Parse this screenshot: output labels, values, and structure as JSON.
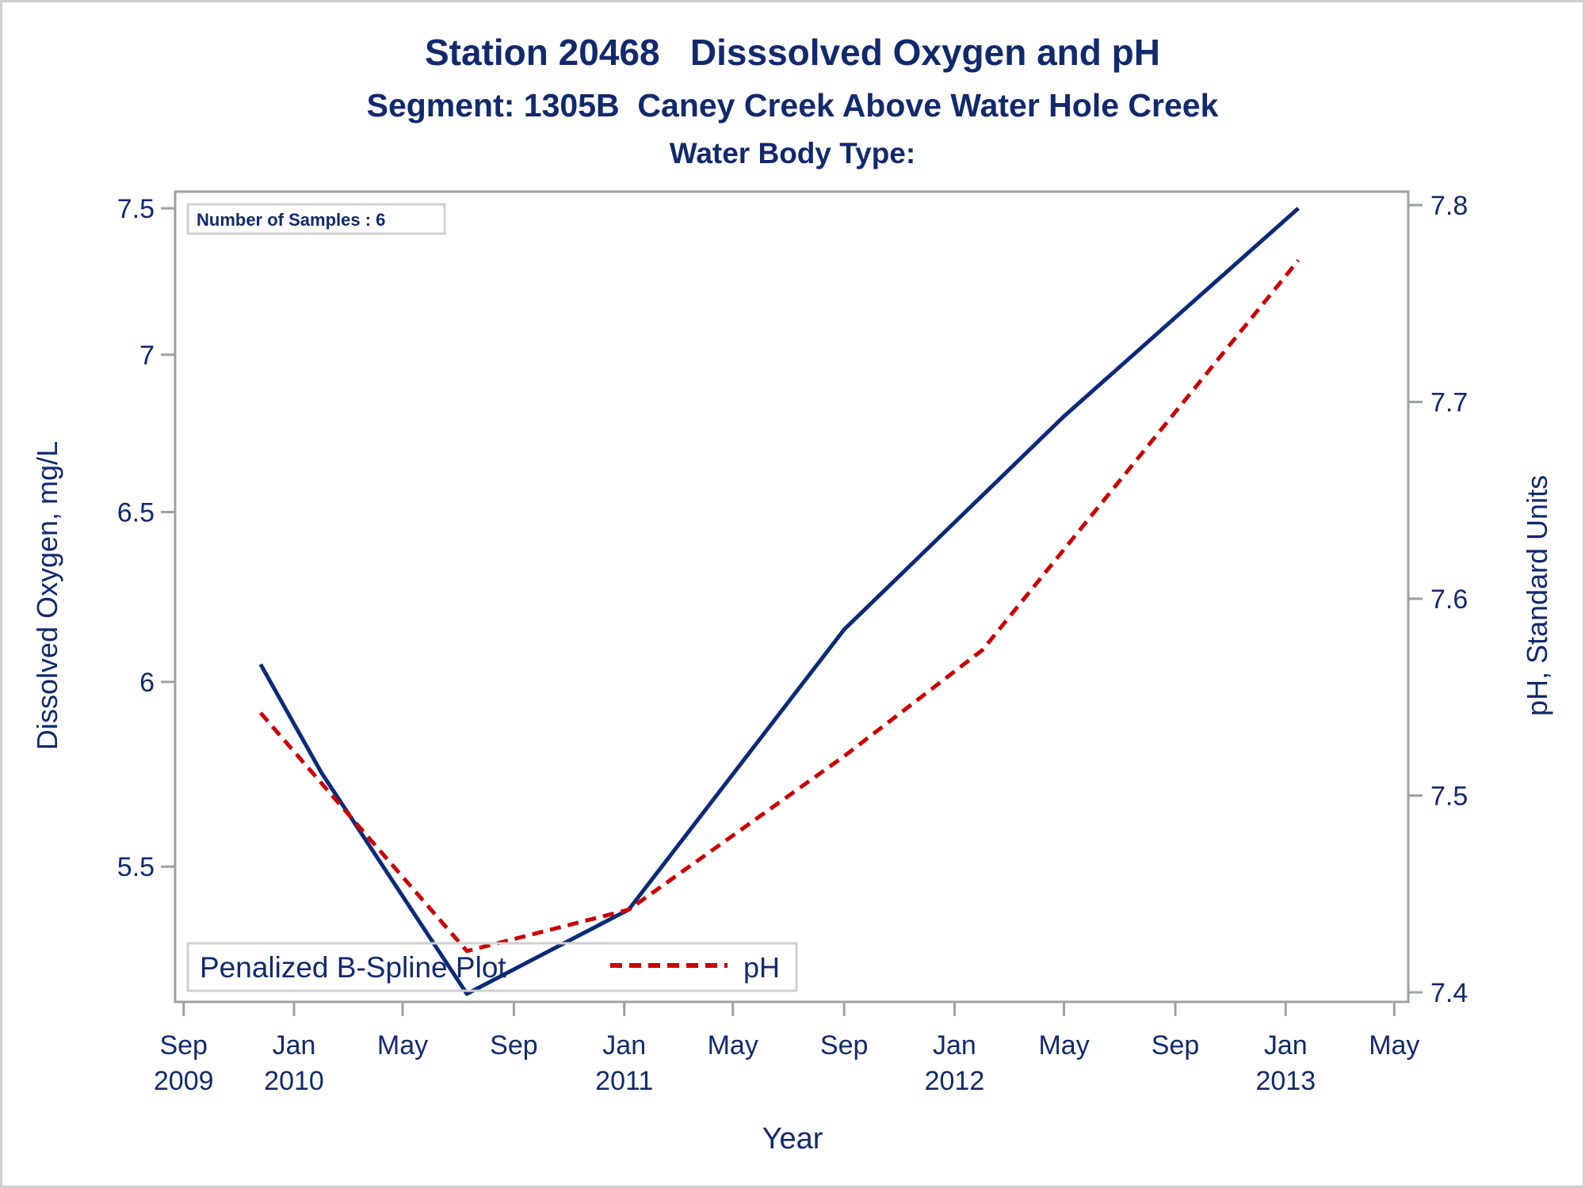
{
  "chart_data": {
    "type": "line",
    "title": "Station 20468   Disssolved Oxygen and pH",
    "subtitle": "Segment: 1305B  Caney Creek Above Water Hole Creek",
    "subtitle2": "Water Body Type:",
    "xlabel": "Year",
    "ylabel_left": "Dissolved Oxygen, mg/L",
    "ylabel_right": "pH, Standard Units",
    "annotation": "Number of Samples : 6",
    "legend": {
      "placement": "bottom-left-inside",
      "title": "Penalized B-Spline Plot",
      "entries": [
        {
          "label": "pH",
          "style": "dashed",
          "color": "#cc0000"
        }
      ]
    },
    "x_axis": {
      "type": "time",
      "range": [
        "2009-09-01",
        "2013-05-01"
      ],
      "ticks": [
        {
          "date": "2009-09-01",
          "label": "Sep",
          "year": "2009"
        },
        {
          "date": "2010-01-01",
          "label": "Jan",
          "year": "2010"
        },
        {
          "date": "2010-05-01",
          "label": "May",
          "year": ""
        },
        {
          "date": "2010-09-01",
          "label": "Sep",
          "year": ""
        },
        {
          "date": "2011-01-01",
          "label": "Jan",
          "year": "2011"
        },
        {
          "date": "2011-05-01",
          "label": "May",
          "year": ""
        },
        {
          "date": "2011-09-01",
          "label": "Sep",
          "year": ""
        },
        {
          "date": "2012-01-01",
          "label": "Jan",
          "year": "2012"
        },
        {
          "date": "2012-05-01",
          "label": "May",
          "year": ""
        },
        {
          "date": "2012-09-01",
          "label": "Sep",
          "year": ""
        },
        {
          "date": "2013-01-01",
          "label": "Jan",
          "year": "2013"
        },
        {
          "date": "2013-05-01",
          "label": "May",
          "year": ""
        }
      ]
    },
    "y_left": {
      "scale": "log",
      "ticks": [
        "7.5",
        "7",
        "6.5",
        "6",
        "5.5"
      ],
      "range": [
        5.15,
        7.6
      ]
    },
    "y_right": {
      "scale": "linear",
      "ticks": [
        "7.8",
        "7.7",
        "7.6",
        "7.5",
        "7.4"
      ],
      "range": [
        7.395,
        7.81
      ]
    },
    "series": [
      {
        "name": "Dissolved Oxygen",
        "axis": "left",
        "color": "#0b2a78",
        "style": "solid",
        "points": [
          {
            "x": "2009-11-25",
            "y": 6.05
          },
          {
            "x": "2010-01-31",
            "y": 5.75
          },
          {
            "x": "2010-07-11",
            "y": 5.18
          },
          {
            "x": "2011-01-06",
            "y": 5.39
          },
          {
            "x": "2011-09-01",
            "y": 6.15
          },
          {
            "x": "2012-05-01",
            "y": 6.8
          },
          {
            "x": "2013-01-15",
            "y": 7.5
          }
        ]
      },
      {
        "name": "pH",
        "axis": "right",
        "color": "#cc0000",
        "style": "dashed",
        "points": [
          {
            "x": "2009-11-25",
            "y": 7.542
          },
          {
            "x": "2010-07-11",
            "y": 7.421
          },
          {
            "x": "2011-01-06",
            "y": 7.442
          },
          {
            "x": "2011-09-01",
            "y": 7.52
          },
          {
            "x": "2012-02-01",
            "y": 7.574
          },
          {
            "x": "2013-01-15",
            "y": 7.772
          }
        ]
      }
    ]
  }
}
